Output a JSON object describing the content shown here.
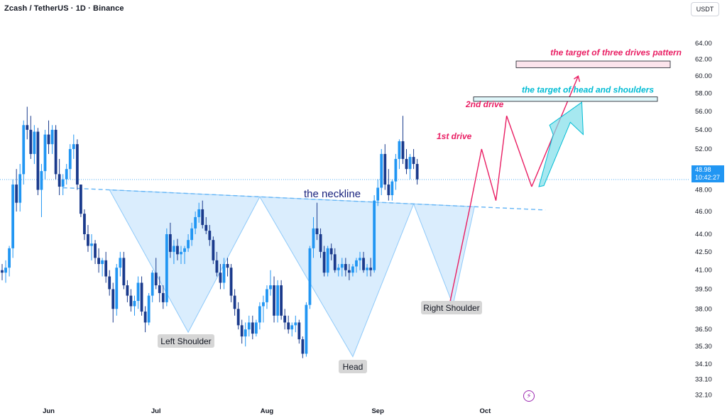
{
  "header": {
    "title": "Zcash / TetherUS · 1D · Binance",
    "currency": "USDT"
  },
  "price_tag": {
    "price": "48.98",
    "countdown": "10:42:27"
  },
  "chart_data": {
    "type": "candlestick",
    "symbol": "Zcash / TetherUS",
    "interval": "1D",
    "exchange": "Binance",
    "y_axis": {
      "scale": "log",
      "range": [
        31.5,
        67
      ],
      "ticks": [
        "64.00",
        "62.00",
        "60.00",
        "58.00",
        "56.00",
        "54.00",
        "52.00",
        "50.00",
        "48.00",
        "46.00",
        "44.00",
        "42.50",
        "41.00",
        "39.50",
        "38.00",
        "36.50",
        "35.30",
        "34.10",
        "33.10",
        "32.10"
      ]
    },
    "x_axis": {
      "ticks": [
        {
          "label": "Jun",
          "index": 13
        },
        {
          "label": "Jul",
          "index": 43
        },
        {
          "label": "Aug",
          "index": 74
        },
        {
          "label": "Sep",
          "index": 105
        },
        {
          "label": "Oct",
          "index": 135
        }
      ]
    },
    "candles": [
      [
        41.0,
        41.5,
        40.2,
        40.8
      ],
      [
        40.8,
        41.8,
        40.0,
        41.2
      ],
      [
        41.2,
        43.0,
        40.5,
        42.8
      ],
      [
        42.8,
        49.0,
        42.0,
        48.5
      ],
      [
        48.5,
        50.0,
        46.0,
        46.8
      ],
      [
        46.8,
        50.5,
        46.0,
        49.5
      ],
      [
        49.5,
        55.0,
        48.5,
        54.5
      ],
      [
        54.5,
        56.5,
        53.0,
        54.0
      ],
      [
        54.0,
        55.5,
        51.0,
        51.5
      ],
      [
        51.5,
        54.5,
        50.5,
        53.8
      ],
      [
        53.8,
        54.2,
        47.5,
        48.0
      ],
      [
        48.0,
        50.5,
        45.5,
        49.8
      ],
      [
        49.8,
        54.0,
        49.0,
        53.5
      ],
      [
        53.5,
        55.0,
        51.5,
        52.5
      ],
      [
        52.5,
        54.5,
        51.5,
        54.0
      ],
      [
        54.0,
        54.5,
        49.0,
        49.5
      ],
      [
        49.5,
        51.0,
        47.5,
        48.3
      ],
      [
        48.3,
        49.5,
        47.5,
        49.0
      ],
      [
        49.0,
        50.5,
        48.5,
        50.0
      ],
      [
        50.0,
        52.5,
        49.0,
        52.0
      ],
      [
        52.0,
        53.5,
        51.0,
        52.5
      ],
      [
        52.5,
        53.0,
        48.0,
        48.5
      ],
      [
        48.5,
        48.5,
        45.5,
        45.8
      ],
      [
        45.8,
        46.2,
        43.5,
        44.0
      ],
      [
        44.0,
        44.8,
        42.5,
        43.0
      ],
      [
        43.0,
        44.0,
        41.8,
        43.2
      ],
      [
        43.2,
        43.5,
        41.5,
        42.0
      ],
      [
        42.0,
        42.8,
        40.8,
        41.5
      ],
      [
        41.5,
        42.0,
        40.5,
        41.8
      ],
      [
        41.8,
        42.5,
        40.0,
        40.5
      ],
      [
        40.5,
        41.0,
        39.0,
        39.5
      ],
      [
        39.5,
        40.0,
        37.0,
        38.0
      ],
      [
        38.0,
        41.5,
        37.5,
        41.2
      ],
      [
        41.2,
        42.5,
        40.5,
        42.0
      ],
      [
        42.0,
        42.5,
        39.5,
        39.8
      ],
      [
        39.8,
        40.2,
        38.5,
        39.0
      ],
      [
        39.0,
        39.5,
        37.8,
        38.2
      ],
      [
        38.2,
        39.0,
        37.5,
        38.6
      ],
      [
        38.6,
        40.5,
        38.0,
        40.0
      ],
      [
        40.0,
        40.5,
        37.5,
        37.8
      ],
      [
        37.8,
        38.2,
        36.3,
        37.0
      ],
      [
        37.0,
        39.2,
        36.8,
        39.0
      ],
      [
        39.0,
        41.0,
        38.5,
        40.8
      ],
      [
        40.8,
        42.0,
        39.5,
        39.8
      ],
      [
        39.8,
        40.5,
        38.5,
        39.2
      ],
      [
        39.2,
        39.8,
        38.0,
        38.5
      ],
      [
        38.5,
        44.5,
        38.2,
        44.0
      ],
      [
        44.0,
        45.0,
        42.0,
        42.5
      ],
      [
        42.5,
        43.5,
        41.5,
        43.0
      ],
      [
        43.0,
        43.6,
        41.8,
        42.3
      ],
      [
        42.3,
        43.0,
        41.5,
        42.5
      ],
      [
        42.5,
        43.0,
        41.5,
        42.8
      ],
      [
        42.8,
        44.0,
        42.5,
        43.5
      ],
      [
        43.5,
        45.0,
        43.0,
        44.5
      ],
      [
        44.5,
        46.0,
        44.0,
        45.5
      ],
      [
        45.5,
        46.8,
        45.0,
        46.2
      ],
      [
        46.2,
        47.0,
        44.5,
        44.8
      ],
      [
        44.8,
        45.5,
        44.0,
        44.3
      ],
      [
        44.3,
        44.8,
        43.0,
        43.5
      ],
      [
        43.5,
        43.8,
        41.5,
        41.8
      ],
      [
        41.8,
        42.5,
        40.5,
        40.8
      ],
      [
        40.8,
        41.5,
        39.5,
        40.0
      ],
      [
        40.0,
        42.0,
        39.5,
        41.5
      ],
      [
        41.5,
        42.0,
        40.5,
        41.2
      ],
      [
        41.2,
        41.5,
        38.5,
        39.0
      ],
      [
        39.0,
        39.5,
        37.5,
        38.0
      ],
      [
        38.0,
        38.5,
        36.5,
        36.8
      ],
      [
        36.8,
        37.2,
        35.5,
        36.0
      ],
      [
        36.0,
        37.0,
        35.3,
        36.5
      ],
      [
        36.5,
        37.5,
        36.0,
        37.0
      ],
      [
        37.0,
        37.5,
        35.8,
        36.2
      ],
      [
        36.2,
        37.2,
        36.0,
        37.0
      ],
      [
        37.0,
        38.5,
        36.5,
        38.2
      ],
      [
        38.2,
        39.0,
        37.0,
        38.5
      ],
      [
        38.5,
        39.8,
        38.0,
        39.5
      ],
      [
        39.5,
        41.0,
        39.0,
        39.8
      ],
      [
        39.8,
        40.5,
        37.0,
        37.5
      ],
      [
        37.5,
        40.2,
        37.0,
        39.8
      ],
      [
        39.8,
        40.2,
        37.2,
        37.5
      ],
      [
        37.5,
        38.0,
        36.5,
        37.0
      ],
      [
        37.0,
        37.5,
        36.2,
        36.5
      ],
      [
        36.5,
        37.0,
        36.0,
        36.8
      ],
      [
        36.8,
        37.5,
        36.3,
        37.0
      ],
      [
        37.0,
        37.2,
        35.5,
        35.8
      ],
      [
        35.8,
        36.0,
        34.5,
        34.8
      ],
      [
        34.8,
        38.5,
        34.6,
        38.3
      ],
      [
        38.3,
        43.0,
        38.0,
        42.8
      ],
      [
        42.8,
        45.5,
        42.0,
        44.5
      ],
      [
        44.5,
        46.8,
        43.5,
        44.0
      ],
      [
        44.0,
        44.5,
        42.0,
        42.5
      ],
      [
        42.5,
        43.0,
        40.5,
        40.8
      ],
      [
        40.8,
        43.0,
        40.5,
        42.8
      ],
      [
        42.8,
        43.2,
        41.8,
        42.3
      ],
      [
        42.3,
        42.8,
        40.8,
        41.0
      ],
      [
        41.0,
        41.5,
        40.5,
        41.2
      ],
      [
        41.2,
        42.0,
        40.5,
        41.5
      ],
      [
        41.5,
        42.0,
        40.5,
        41.0
      ],
      [
        41.0,
        41.5,
        40.2,
        40.8
      ],
      [
        40.8,
        41.5,
        40.5,
        41.3
      ],
      [
        41.3,
        42.0,
        40.8,
        41.8
      ],
      [
        41.8,
        42.5,
        41.0,
        42.0
      ],
      [
        42.0,
        42.5,
        40.8,
        41.0
      ],
      [
        41.0,
        41.5,
        40.5,
        41.2
      ],
      [
        41.2,
        42.0,
        40.5,
        41.0
      ],
      [
        41.0,
        47.5,
        40.8,
        47.0
      ],
      [
        47.0,
        49.0,
        46.5,
        48.2
      ],
      [
        48.2,
        52.0,
        47.5,
        51.5
      ],
      [
        51.5,
        52.5,
        48.0,
        48.5
      ],
      [
        48.5,
        50.0,
        47.0,
        47.5
      ],
      [
        47.5,
        49.0,
        47.0,
        48.8
      ],
      [
        48.8,
        51.5,
        48.0,
        51.0
      ],
      [
        51.0,
        53.0,
        50.0,
        52.8
      ],
      [
        52.8,
        55.5,
        50.5,
        51.0
      ],
      [
        51.0,
        52.0,
        49.5,
        50.0
      ],
      [
        50.0,
        51.5,
        49.0,
        51.2
      ],
      [
        51.2,
        52.0,
        50.0,
        50.5
      ],
      [
        50.5,
        51.0,
        48.5,
        49.0
      ]
    ],
    "series_color_up": "#2196f3",
    "series_color_down": "#1a3a8c",
    "last_price": 48.98,
    "neckline": {
      "label": "the neckline",
      "from": [
        17,
        48.2
      ],
      "to": [
        128,
        46.5
      ]
    },
    "head_and_shoulders": [
      {
        "label": "Left Shoulder",
        "index": 43,
        "price": 36.3
      },
      {
        "label": "Head",
        "index": 80,
        "price": 34.6
      },
      {
        "label": "Right Shoulder",
        "index": 102,
        "price": 38.3
      }
    ],
    "three_drives": [
      {
        "label": "1st drive",
        "index": 111,
        "price": 52.0
      },
      {
        "label": "2nd drive",
        "index": 117,
        "price": 55.5
      }
    ],
    "targets": [
      {
        "label": "the target of three drives pattern",
        "price_low": 61.0,
        "price_high": 61.8
      },
      {
        "label": "the target of head and shoulders",
        "price_low": 57.1,
        "price_high": 57.6
      }
    ],
    "colors": {
      "blue_up": "#2196f3",
      "navy_down": "#1a3a8c",
      "pattern_fill": "#bbdefb",
      "neckline": "#64b5f6",
      "red": "#e91e63",
      "cyan": "#00bcd4"
    }
  }
}
